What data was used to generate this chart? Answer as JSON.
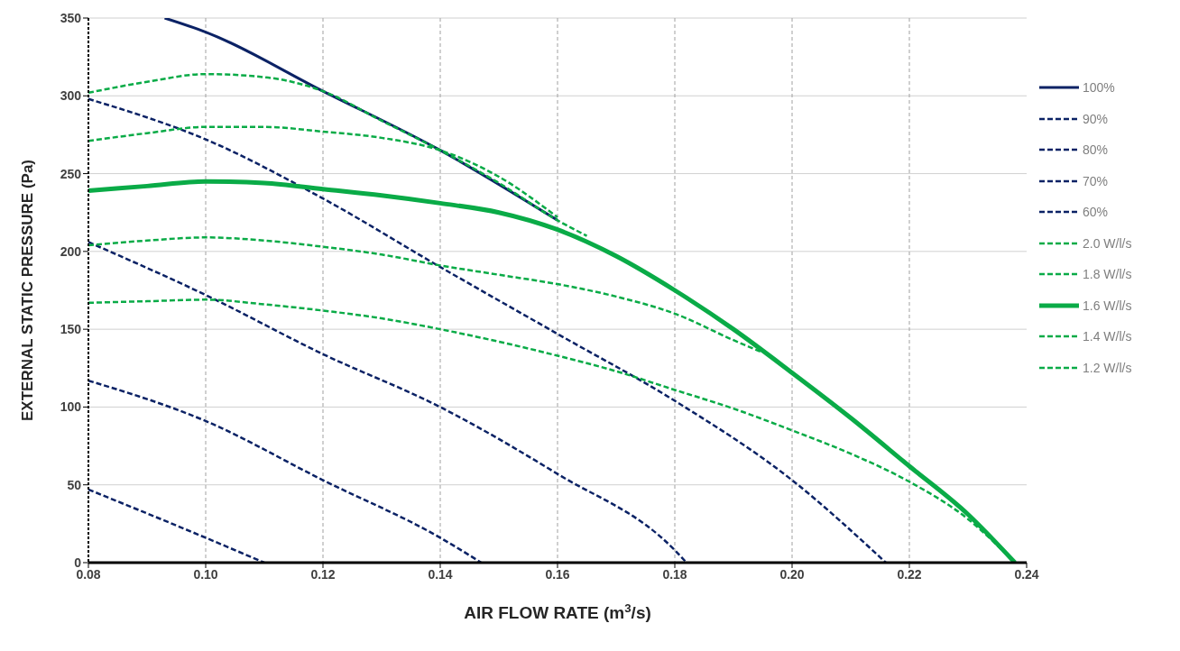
{
  "chart_data": {
    "type": "line",
    "xlabel": "AIR FLOW RATE (m$^{3}$/s)",
    "ylabel": "EXTERNAL STATIC PRESSURE (Pa)",
    "xlim": [
      0.08,
      0.24
    ],
    "xticks": [
      {
        "value": 0.08,
        "label": "0.08"
      },
      {
        "value": 0.1,
        "label": "0.10"
      },
      {
        "value": 0.12,
        "label": "0.12"
      },
      {
        "value": 0.14,
        "label": "0.14"
      },
      {
        "value": 0.16,
        "label": "0.16"
      },
      {
        "value": 0.18,
        "label": "0.18"
      },
      {
        "value": 0.2,
        "label": "0.20"
      },
      {
        "value": 0.22,
        "label": "0.22"
      },
      {
        "value": 0.24,
        "label": "0.24"
      }
    ],
    "ylim": [
      0,
      350
    ],
    "yticks": [
      0,
      50,
      100,
      150,
      200,
      250,
      300,
      350
    ],
    "grid": true,
    "legend": "right",
    "marker": "none",
    "series": [
      {
        "name": "100%",
        "color": "#0b2265",
        "line_style": "solid",
        "x": [
          0.093,
          0.1,
          0.12,
          0.14,
          0.16
        ],
        "values": [
          350,
          341,
          303,
          265,
          220
        ]
      },
      {
        "name": "90%",
        "color": "#0b2265",
        "line_style": "dashed",
        "x": [
          0.08,
          0.1,
          0.12,
          0.14,
          0.16,
          0.18,
          0.2,
          0.216
        ],
        "values": [
          298,
          272,
          234,
          190,
          147,
          104,
          53,
          0
        ]
      },
      {
        "name": "80%",
        "color": "#0b2265",
        "line_style": "dashed",
        "x": [
          0.08,
          0.1,
          0.12,
          0.14,
          0.16,
          0.18,
          0.182
        ],
        "values": [
          206,
          172,
          134,
          100,
          57,
          8,
          0
        ]
      },
      {
        "name": "70%",
        "color": "#0b2265",
        "line_style": "dashed",
        "x": [
          0.08,
          0.1,
          0.12,
          0.14,
          0.147
        ],
        "values": [
          117,
          91,
          53,
          16,
          0
        ]
      },
      {
        "name": "60%",
        "color": "#0b2265",
        "line_style": "dashed",
        "x": [
          0.08,
          0.1,
          0.11
        ],
        "values": [
          47,
          16,
          0
        ]
      },
      {
        "name": "2.0 W/l/s",
        "color": "#0aab47",
        "line_style": "dashed",
        "x": [
          0.08,
          0.09,
          0.1,
          0.11,
          0.12,
          0.13,
          0.14,
          0.15,
          0.16,
          0.165
        ],
        "values": [
          302,
          309,
          314,
          312,
          303,
          284,
          265,
          244,
          220,
          210
        ]
      },
      {
        "name": "1.8 W/l/s",
        "color": "#0aab47",
        "line_style": "dashed",
        "x": [
          0.08,
          0.09,
          0.1,
          0.11,
          0.12,
          0.13,
          0.14,
          0.15,
          0.16
        ],
        "values": [
          271,
          276,
          280,
          280,
          277,
          273,
          265,
          248,
          222
        ]
      },
      {
        "name": "1.6 W/l/s",
        "color": "#0aab47",
        "line_style": "solid",
        "x": [
          0.08,
          0.09,
          0.1,
          0.11,
          0.12,
          0.13,
          0.14,
          0.15,
          0.16,
          0.17,
          0.18,
          0.19,
          0.2,
          0.21,
          0.22,
          0.23,
          0.238
        ],
        "values": [
          239,
          242,
          245,
          244,
          240,
          236,
          231,
          225,
          214,
          197,
          175,
          150,
          122,
          93,
          62,
          31,
          0
        ]
      },
      {
        "name": "1.4 W/l/s",
        "color": "#0aab47",
        "line_style": "dashed",
        "x": [
          0.08,
          0.09,
          0.1,
          0.11,
          0.12,
          0.13,
          0.14,
          0.15,
          0.16,
          0.17,
          0.18,
          0.19,
          0.195
        ],
        "values": [
          204,
          207,
          209,
          207,
          203,
          198,
          191,
          185,
          179,
          171,
          160,
          143,
          135
        ]
      },
      {
        "name": "1.2 W/l/s",
        "color": "#0aab47",
        "line_style": "dashed",
        "x": [
          0.08,
          0.09,
          0.1,
          0.11,
          0.12,
          0.13,
          0.14,
          0.15,
          0.16,
          0.17,
          0.18,
          0.19,
          0.2,
          0.21,
          0.22,
          0.23,
          0.238
        ],
        "values": [
          167,
          168,
          169,
          166,
          162,
          157,
          150,
          142,
          133,
          123,
          111,
          99,
          85,
          70,
          52,
          28,
          0
        ]
      }
    ]
  }
}
